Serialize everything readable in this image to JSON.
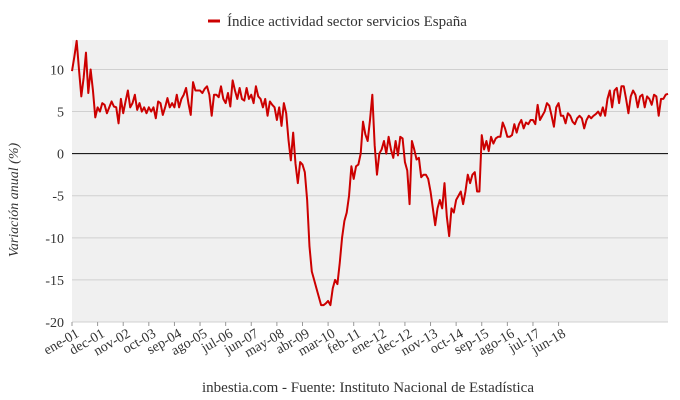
{
  "chart_data": {
    "type": "line",
    "title": "",
    "legend": {
      "label": "Índice actividad sector servicios España",
      "placement": "top-center"
    },
    "ylabel": "Variación anual (%)",
    "xlabel": "",
    "caption": "inbestia.com - Fuente: Instituto Nacional de Estadística",
    "ylim": [
      -20,
      13.5
    ],
    "yticks": [
      10,
      5,
      0,
      -5,
      -10,
      -15,
      -20
    ],
    "x_tick_labels": [
      "ene-01",
      "dec-01",
      "nov-02",
      "oct-03",
      "sep-04",
      "ago-05",
      "jul-06",
      "jun-07",
      "may-08",
      "abr-09",
      "mar-10",
      "feb-11",
      "ene-12",
      "dec-12",
      "nov-13",
      "oct-14",
      "sep-15",
      "ago-16",
      "jul-17",
      "jun-18"
    ],
    "x_tick_spacing_months": 11,
    "grid": true,
    "zero_line": true,
    "series_color": "#cc0000",
    "plot_background": "#f0f0f0",
    "series": [
      {
        "name": "Índice actividad sector servicios España",
        "start": "ene-01",
        "frequency": "monthly",
        "values": [
          9.8,
          11.5,
          13.4,
          10,
          6.8,
          9,
          12,
          7.2,
          10,
          7.5,
          4.3,
          5.5,
          5,
          6,
          5.8,
          4.8,
          5.5,
          6.2,
          5.6,
          5.5,
          3.6,
          6.5,
          4.8,
          6.2,
          7.5,
          5.5,
          6,
          7,
          5.2,
          6,
          5,
          5.5,
          4.8,
          5.5,
          5,
          5.5,
          4.2,
          6.2,
          6,
          4.6,
          5.5,
          6.6,
          5.5,
          6,
          5.5,
          7,
          5.5,
          6.5,
          7,
          7.8,
          6,
          4.6,
          8.5,
          7.5,
          7.5,
          7.5,
          7.2,
          7.7,
          8,
          7,
          4.5,
          7,
          7,
          6.7,
          8,
          6.5,
          6,
          7.2,
          5.6,
          8.7,
          7.5,
          6.5,
          7.8,
          6.5,
          6.3,
          7.8,
          6.5,
          7,
          6,
          8,
          6.8,
          6.5,
          5.5,
          6.5,
          4.5,
          6.2,
          5.8,
          5.5,
          4,
          5.5,
          3.3,
          6,
          4.8,
          1.6,
          -0.8,
          2.5,
          -1.2,
          -3.5,
          -1,
          -1.3,
          -2.2,
          -5.5,
          -11,
          -14,
          -15,
          -16,
          -17,
          -18,
          -18,
          -17.8,
          -17.5,
          -18,
          -16,
          -15,
          -15.5,
          -13,
          -10,
          -8,
          -7,
          -5,
          -1.5,
          -3,
          -1.5,
          -1.3,
          0,
          3.8,
          2.3,
          1.5,
          4,
          7,
          1,
          -2.5,
          0,
          0.5,
          1.5,
          0,
          2,
          0.5,
          -0.5,
          1.5,
          -0.2,
          2,
          1.8,
          -1,
          -2,
          -6,
          1.5,
          0.5,
          -0.7,
          -0.5,
          -2.8,
          -2.5,
          -2.5,
          -3,
          -4.5,
          -6.5,
          -8.5,
          -6.5,
          -5.5,
          -6.5,
          -3.5,
          -7.5,
          -9.8,
          -6.5,
          -7,
          -5.5,
          -5,
          -4.5,
          -6,
          -4.5,
          -2.5,
          -3.5,
          -2.5,
          -2.2,
          -4.5,
          -4.5,
          2.2,
          0.5,
          1.5,
          0.3,
          2,
          1.2,
          1.8,
          2,
          2,
          3.7,
          3,
          2,
          2,
          2.2,
          3.5,
          2.5,
          3.5,
          4,
          3,
          3.7,
          3.5,
          4,
          4,
          3.5,
          5.8,
          4,
          4.5,
          5,
          6,
          5.7,
          4.5,
          3.2,
          5.5,
          6,
          4.5,
          4.5,
          3.6,
          4.8,
          4.5,
          3.8,
          3.5,
          4.2,
          4.5,
          4.2,
          3,
          4,
          4.5,
          4.2,
          4.5,
          4.7,
          5,
          4.5,
          5.5,
          4.5,
          6.5,
          7.5,
          5.5,
          7.5,
          7.8,
          6,
          8,
          8,
          6.5,
          4.8,
          6.8,
          7.5,
          7,
          5.5,
          6.8,
          7,
          5.5,
          6.8,
          6.5,
          5.8,
          7,
          6.8,
          4.5,
          6.5,
          6.5,
          7,
          7.1
        ]
      }
    ]
  }
}
